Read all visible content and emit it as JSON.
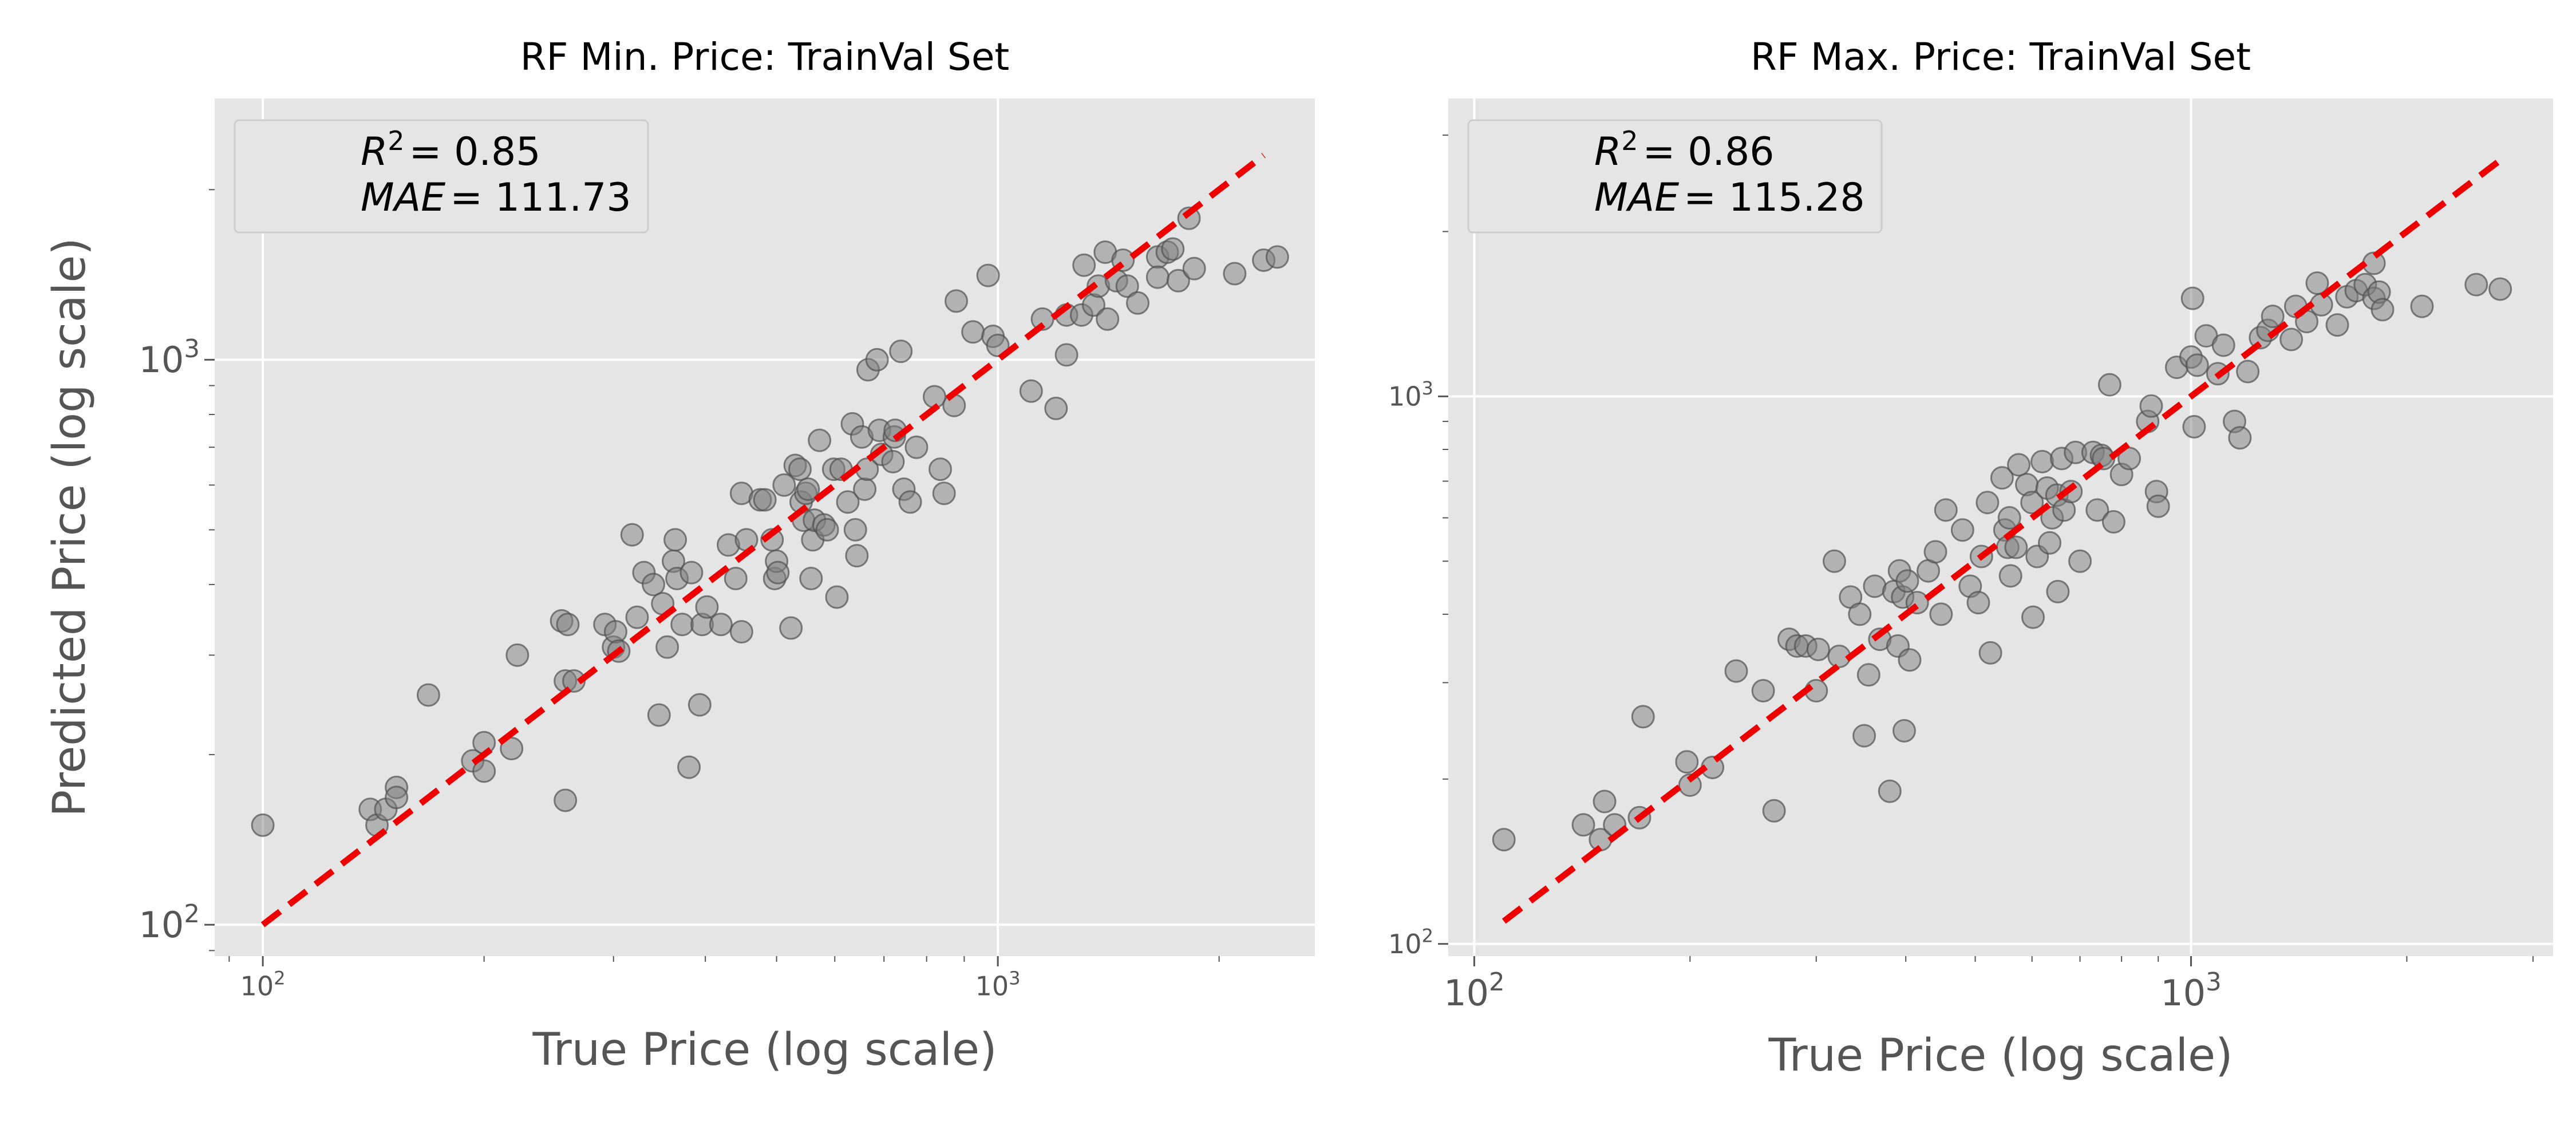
{
  "chart_data": [
    {
      "type": "scatter",
      "title": "RF Min. Price: TrainVal Set",
      "xlabel": "True Price (log scale)",
      "ylabel": "Predicted Price (log scale)",
      "xscale": "log",
      "yscale": "log",
      "xlim": [
        86,
        2700
      ],
      "ylim": [
        88,
        2900
      ],
      "xticks": [
        {
          "value": 100,
          "mantissa": "10",
          "exp": "2"
        },
        {
          "value": 1000,
          "mantissa": "10",
          "exp": "3"
        }
      ],
      "yticks": [
        {
          "value": 100,
          "mantissa": "10",
          "exp": "2"
        },
        {
          "value": 1000,
          "mantissa": "10",
          "exp": "3"
        }
      ],
      "grid": true,
      "legend_position": "top-left",
      "annotation": {
        "r2_label": "R",
        "r2_exp": "2",
        "r2_value": "= 0.85",
        "mae_label": "MAE",
        "mae_value": "= 111.73"
      },
      "reference_line": {
        "from": [
          100,
          100
        ],
        "to": [
          2300,
          2300
        ],
        "color": "#ee0000",
        "style": "dashed"
      },
      "points": [
        [
          100,
          150
        ],
        [
          140,
          160
        ],
        [
          143,
          150
        ],
        [
          147,
          160
        ],
        [
          152,
          175
        ],
        [
          152,
          168
        ],
        [
          168,
          255
        ],
        [
          193,
          195
        ],
        [
          200,
          210
        ],
        [
          200,
          187
        ],
        [
          218,
          205
        ],
        [
          222,
          300
        ],
        [
          255,
          345
        ],
        [
          258,
          270
        ],
        [
          258,
          166
        ],
        [
          260,
          340
        ],
        [
          265,
          270
        ],
        [
          292,
          340
        ],
        [
          300,
          310
        ],
        [
          302,
          330
        ],
        [
          305,
          305
        ],
        [
          318,
          490
        ],
        [
          323,
          350
        ],
        [
          330,
          420
        ],
        [
          340,
          400
        ],
        [
          346,
          235
        ],
        [
          350,
          370
        ],
        [
          355,
          310
        ],
        [
          362,
          440
        ],
        [
          364,
          480
        ],
        [
          366,
          410
        ],
        [
          372,
          340
        ],
        [
          380,
          190
        ],
        [
          383,
          420
        ],
        [
          393,
          245
        ],
        [
          396,
          340
        ],
        [
          402,
          365
        ],
        [
          420,
          340
        ],
        [
          430,
          470
        ],
        [
          440,
          410
        ],
        [
          448,
          330
        ],
        [
          448,
          580
        ],
        [
          455,
          480
        ],
        [
          475,
          565
        ],
        [
          482,
          565
        ],
        [
          493,
          480
        ],
        [
          497,
          410
        ],
        [
          500,
          440
        ],
        [
          502,
          420
        ],
        [
          512,
          600
        ],
        [
          523,
          335
        ],
        [
          530,
          650
        ],
        [
          538,
          640
        ],
        [
          540,
          560
        ],
        [
          544,
          520
        ],
        [
          548,
          580
        ],
        [
          552,
          590
        ],
        [
          557,
          410
        ],
        [
          560,
          480
        ],
        [
          563,
          520
        ],
        [
          572,
          720
        ],
        [
          580,
          510
        ],
        [
          586,
          500
        ],
        [
          598,
          640
        ],
        [
          604,
          380
        ],
        [
          612,
          640
        ],
        [
          625,
          560
        ],
        [
          634,
          770
        ],
        [
          640,
          500
        ],
        [
          643,
          450
        ],
        [
          653,
          730
        ],
        [
          659,
          590
        ],
        [
          664,
          640
        ],
        [
          666,
          960
        ],
        [
          685,
          1000
        ],
        [
          690,
          750
        ],
        [
          695,
          680
        ],
        [
          720,
          660
        ],
        [
          723,
          730
        ],
        [
          725,
          750
        ],
        [
          738,
          1035
        ],
        [
          745,
          590
        ],
        [
          760,
          560
        ],
        [
          775,
          700
        ],
        [
          820,
          860
        ],
        [
          835,
          640
        ],
        [
          845,
          580
        ],
        [
          872,
          830
        ],
        [
          878,
          1270
        ],
        [
          925,
          1120
        ],
        [
          970,
          1410
        ],
        [
          985,
          1100
        ],
        [
          1000,
          1060
        ],
        [
          1110,
          880
        ],
        [
          1150,
          1180
        ],
        [
          1200,
          820
        ],
        [
          1240,
          1200
        ],
        [
          1240,
          1020
        ],
        [
          1300,
          1200
        ],
        [
          1310,
          1470
        ],
        [
          1350,
          1250
        ],
        [
          1370,
          1350
        ],
        [
          1400,
          1550
        ],
        [
          1410,
          1180
        ],
        [
          1450,
          1380
        ],
        [
          1480,
          1500
        ],
        [
          1500,
          1350
        ],
        [
          1550,
          1260
        ],
        [
          1650,
          1520
        ],
        [
          1650,
          1400
        ],
        [
          1700,
          1550
        ],
        [
          1730,
          1570
        ],
        [
          1760,
          1380
        ],
        [
          1820,
          1780
        ],
        [
          1850,
          1450
        ],
        [
          2100,
          1420
        ],
        [
          2300,
          1500
        ],
        [
          2400,
          1520
        ]
      ]
    },
    {
      "type": "scatter",
      "title": "RF Max. Price: TrainVal Set",
      "xlabel": "True Price (log scale)",
      "ylabel": "",
      "xscale": "log",
      "yscale": "log",
      "xlim": [
        92,
        3200
      ],
      "ylim": [
        95,
        3500
      ],
      "xticks": [
        {
          "value": 100,
          "mantissa": "10",
          "exp": "2"
        },
        {
          "value": 1000,
          "mantissa": "10",
          "exp": "3"
        }
      ],
      "yticks": [
        {
          "value": 100,
          "mantissa": "10",
          "exp": "2"
        },
        {
          "value": 1000,
          "mantissa": "10",
          "exp": "3"
        }
      ],
      "grid": true,
      "legend_position": "top-left",
      "annotation": {
        "r2_label": "R",
        "r2_exp": "2",
        "r2_value": "= 0.86",
        "mae_label": "MAE",
        "mae_value": "= 115.28"
      },
      "reference_line": {
        "from": [
          110,
          110
        ],
        "to": [
          2700,
          2700
        ],
        "color": "#ee0000",
        "style": "dashed"
      },
      "points": [
        [
          110,
          155
        ],
        [
          142,
          165
        ],
        [
          150,
          155
        ],
        [
          152,
          182
        ],
        [
          157,
          165
        ],
        [
          170,
          170
        ],
        [
          172,
          260
        ],
        [
          198,
          215
        ],
        [
          200,
          195
        ],
        [
          215,
          210
        ],
        [
          232,
          315
        ],
        [
          253,
          290
        ],
        [
          262,
          175
        ],
        [
          275,
          360
        ],
        [
          282,
          350
        ],
        [
          290,
          350
        ],
        [
          300,
          290
        ],
        [
          302,
          345
        ],
        [
          318,
          500
        ],
        [
          323,
          335
        ],
        [
          335,
          430
        ],
        [
          345,
          400
        ],
        [
          350,
          240
        ],
        [
          355,
          310
        ],
        [
          362,
          450
        ],
        [
          368,
          360
        ],
        [
          380,
          190
        ],
        [
          385,
          440
        ],
        [
          390,
          350
        ],
        [
          392,
          480
        ],
        [
          396,
          430
        ],
        [
          398,
          245
        ],
        [
          402,
          460
        ],
        [
          405,
          330
        ],
        [
          415,
          420
        ],
        [
          430,
          480
        ],
        [
          440,
          520
        ],
        [
          448,
          400
        ],
        [
          455,
          620
        ],
        [
          480,
          570
        ],
        [
          492,
          450
        ],
        [
          505,
          420
        ],
        [
          510,
          510
        ],
        [
          520,
          640
        ],
        [
          525,
          340
        ],
        [
          545,
          710
        ],
        [
          550,
          570
        ],
        [
          555,
          530
        ],
        [
          558,
          600
        ],
        [
          560,
          470
        ],
        [
          570,
          530
        ],
        [
          575,
          750
        ],
        [
          590,
          690
        ],
        [
          600,
          640
        ],
        [
          602,
          395
        ],
        [
          610,
          510
        ],
        [
          620,
          760
        ],
        [
          630,
          680
        ],
        [
          635,
          540
        ],
        [
          640,
          600
        ],
        [
          650,
          660
        ],
        [
          652,
          440
        ],
        [
          660,
          770
        ],
        [
          665,
          620
        ],
        [
          680,
          670
        ],
        [
          690,
          790
        ],
        [
          700,
          500
        ],
        [
          730,
          790
        ],
        [
          740,
          620
        ],
        [
          750,
          780
        ],
        [
          755,
          770
        ],
        [
          770,
          1050
        ],
        [
          780,
          590
        ],
        [
          800,
          720
        ],
        [
          820,
          770
        ],
        [
          870,
          900
        ],
        [
          880,
          960
        ],
        [
          895,
          670
        ],
        [
          900,
          630
        ],
        [
          955,
          1130
        ],
        [
          1000,
          1180
        ],
        [
          1005,
          1510
        ],
        [
          1010,
          880
        ],
        [
          1020,
          1140
        ],
        [
          1050,
          1290
        ],
        [
          1090,
          1100
        ],
        [
          1110,
          1240
        ],
        [
          1150,
          900
        ],
        [
          1170,
          840
        ],
        [
          1200,
          1110
        ],
        [
          1250,
          1280
        ],
        [
          1280,
          1320
        ],
        [
          1300,
          1400
        ],
        [
          1380,
          1270
        ],
        [
          1400,
          1460
        ],
        [
          1450,
          1370
        ],
        [
          1500,
          1610
        ],
        [
          1520,
          1470
        ],
        [
          1600,
          1350
        ],
        [
          1650,
          1520
        ],
        [
          1700,
          1560
        ],
        [
          1750,
          1600
        ],
        [
          1800,
          1510
        ],
        [
          1800,
          1750
        ],
        [
          1830,
          1550
        ],
        [
          1850,
          1440
        ],
        [
          2100,
          1460
        ],
        [
          2500,
          1600
        ],
        [
          2700,
          1570
        ]
      ]
    }
  ]
}
